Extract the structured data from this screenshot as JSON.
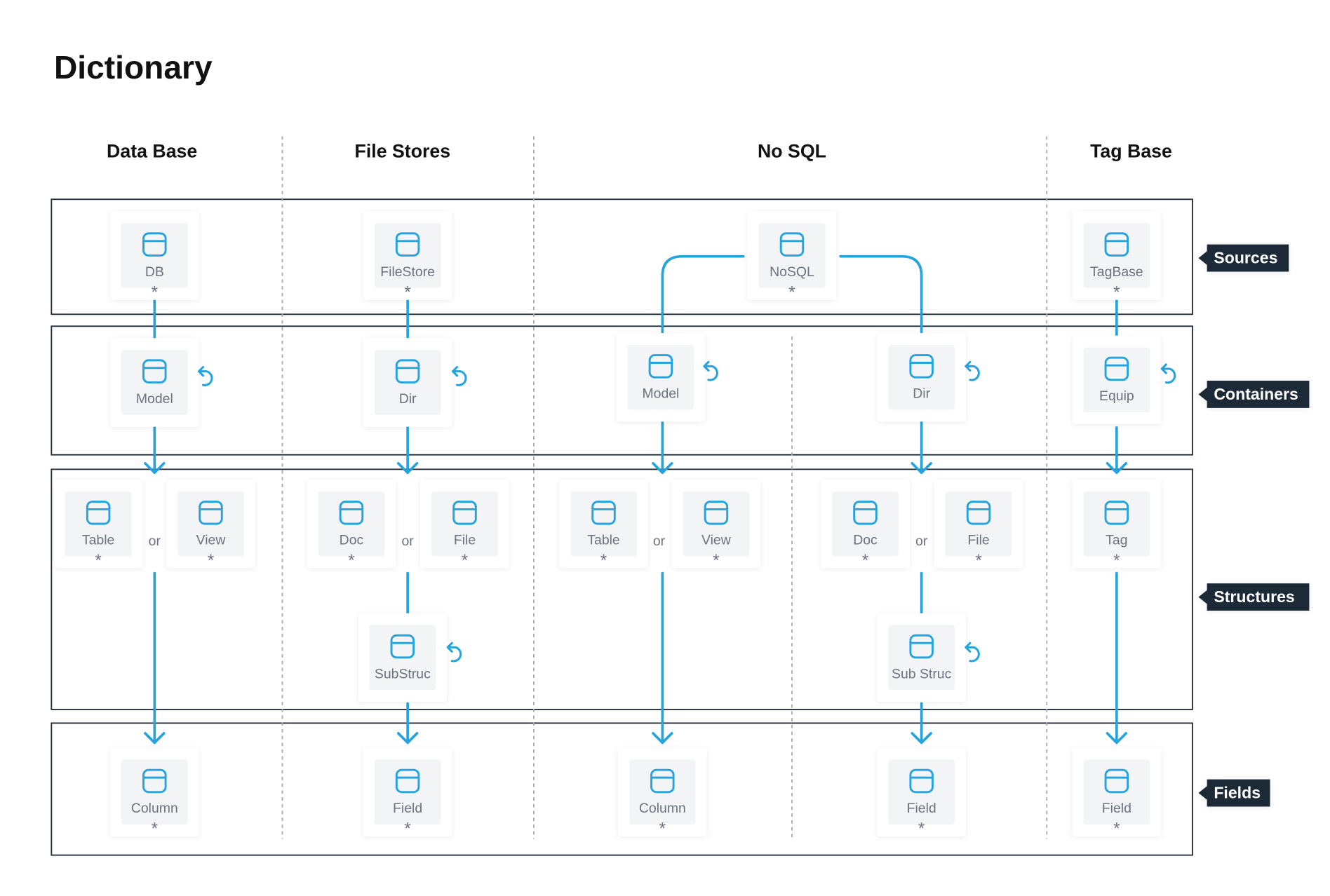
{
  "title": "Dictionary",
  "columns": [
    "Data Base",
    "File Stores",
    "No SQL",
    "Tag Base"
  ],
  "rows": [
    "Sources",
    "Containers",
    "Structures",
    "Fields"
  ],
  "nodes": [
    {
      "label": "DB",
      "cardinality": "*"
    },
    {
      "label": "FileStore",
      "cardinality": "*"
    },
    {
      "label": "NoSQL",
      "cardinality": "*"
    },
    {
      "label": "TagBase",
      "cardinality": "*"
    },
    {
      "label": "Model"
    },
    {
      "label": "Dir"
    },
    {
      "label": "Model"
    },
    {
      "label": "Dir"
    },
    {
      "label": "Equip"
    },
    {
      "label": "Table",
      "cardinality": "*"
    },
    {
      "label": "View",
      "cardinality": "*"
    },
    {
      "label": "Doc",
      "cardinality": "*"
    },
    {
      "label": "File",
      "cardinality": "*"
    },
    {
      "label": "Table",
      "cardinality": "*"
    },
    {
      "label": "View",
      "cardinality": "*"
    },
    {
      "label": "Doc",
      "cardinality": "*"
    },
    {
      "label": "File",
      "cardinality": "*"
    },
    {
      "label": "Tag",
      "cardinality": "*"
    },
    {
      "label": "SubStruc"
    },
    {
      "label": "Sub Struc"
    },
    {
      "label": "Column",
      "cardinality": "*"
    },
    {
      "label": "Field",
      "cardinality": "*"
    },
    {
      "label": "Column",
      "cardinality": "*"
    },
    {
      "label": "Field",
      "cardinality": "*"
    },
    {
      "label": "Field",
      "cardinality": "*"
    }
  ],
  "connectors": [
    "or",
    "or",
    "or",
    "or"
  ]
}
